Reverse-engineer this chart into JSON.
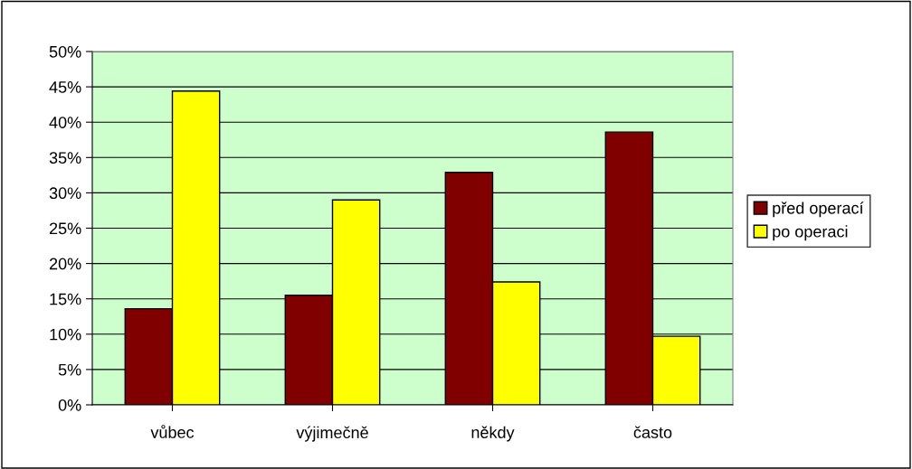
{
  "chart_data": {
    "type": "bar",
    "categories": [
      "vůbec",
      "výjimečně",
      "někdy",
      "často"
    ],
    "series": [
      {
        "name": "před operací",
        "color": "#800000",
        "values": [
          13.6,
          15.5,
          32.9,
          38.6
        ]
      },
      {
        "name": "po operaci",
        "color": "#ffff00",
        "values": [
          44.4,
          29.0,
          17.4,
          9.7
        ]
      }
    ],
    "ylim": [
      0,
      50
    ],
    "yticks": [
      {
        "value": 0,
        "label": "0%"
      },
      {
        "value": 5,
        "label": "5%"
      },
      {
        "value": 10,
        "label": "10%"
      },
      {
        "value": 15,
        "label": "15%"
      },
      {
        "value": 20,
        "label": "20%"
      },
      {
        "value": 25,
        "label": "25%"
      },
      {
        "value": 30,
        "label": "30%"
      },
      {
        "value": 35,
        "label": "35%"
      },
      {
        "value": 40,
        "label": "40%"
      },
      {
        "value": 45,
        "label": "45%"
      },
      {
        "value": 50,
        "label": "50%"
      }
    ],
    "grid": "y",
    "legend": "right"
  }
}
